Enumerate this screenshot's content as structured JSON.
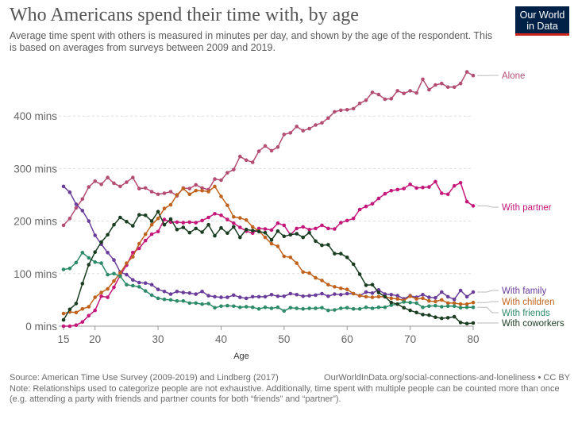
{
  "header": {
    "title": "Who Americans spend their time with, by age",
    "subtitle": "Average time spent with others is measured in minutes per day, and shown by the age of the respondent. This is based on averages from surveys between 2009 and 2019."
  },
  "logo": {
    "line1": "Our World",
    "line2": "in Data",
    "color": "#002147",
    "accent": "#ce261e"
  },
  "footer": {
    "source": "Source: American Time Use Survey (2009-2019) and Lindberg (2017)",
    "url": "OurWorldInData.org/social-connections-and-loneliness • CC BY",
    "note": "Note: Relationships used to categorize people are not exhaustive. Additionally, time spent with multiple people can be counted more than once (e.g. attending a party with friends and partner counts for both “friends” and “partner”)."
  },
  "chart_data": {
    "type": "line",
    "title": "Who Americans spend their time with, by age",
    "xlabel": "Age",
    "ylabel": "",
    "xlim": [
      15,
      80
    ],
    "ylim": [
      0,
      500
    ],
    "x_ticks": [
      15,
      20,
      30,
      40,
      50,
      60,
      70,
      80
    ],
    "x_tick_labels": [
      "15",
      "20",
      "30",
      "40",
      "50",
      "60",
      "70",
      "80"
    ],
    "y_ticks": [
      0,
      100,
      200,
      300,
      400
    ],
    "y_tick_labels": [
      "0 mins",
      "100 mins",
      "200 mins",
      "300 mins",
      "400 mins"
    ],
    "grid": true,
    "x": [
      15,
      16,
      17,
      18,
      19,
      20,
      21,
      22,
      23,
      24,
      25,
      26,
      27,
      28,
      29,
      30,
      31,
      32,
      33,
      34,
      35,
      36,
      37,
      38,
      39,
      40,
      41,
      42,
      43,
      44,
      45,
      46,
      47,
      48,
      49,
      50,
      51,
      52,
      53,
      54,
      55,
      56,
      57,
      58,
      59,
      60,
      61,
      62,
      63,
      64,
      65,
      66,
      67,
      68,
      69,
      70,
      71,
      72,
      73,
      74,
      75,
      76,
      77,
      78,
      79,
      80
    ],
    "series": [
      {
        "name": "Alone",
        "color": "#b34d74",
        "values": [
          192,
          205,
          225,
          242,
          265,
          276,
          270,
          283,
          272,
          266,
          274,
          283,
          262,
          263,
          256,
          251,
          253,
          256,
          248,
          263,
          262,
          269,
          263,
          260,
          280,
          278,
          292,
          298,
          323,
          316,
          312,
          333,
          343,
          334,
          341,
          365,
          368,
          380,
          372,
          376,
          383,
          387,
          396,
          408,
          411,
          412,
          414,
          424,
          430,
          445,
          441,
          432,
          433,
          448,
          443,
          448,
          444,
          470,
          450,
          459,
          462,
          455,
          455,
          462,
          484,
          477
        ]
      },
      {
        "name": "With partner",
        "color": "#c4177a",
        "values": [
          0,
          0,
          2,
          8,
          20,
          30,
          57,
          55,
          74,
          97,
          116,
          140,
          148,
          163,
          175,
          180,
          203,
          198,
          198,
          197,
          198,
          197,
          201,
          207,
          214,
          211,
          203,
          196,
          188,
          181,
          177,
          186,
          185,
          183,
          196,
          192,
          174,
          186,
          189,
          184,
          186,
          192,
          186,
          185,
          197,
          201,
          205,
          222,
          228,
          233,
          243,
          252,
          258,
          260,
          262,
          270,
          263,
          264,
          265,
          275,
          253,
          251,
          267,
          273,
          237,
          229
        ]
      },
      {
        "name": "With family",
        "color": "#6a3d9a",
        "values": [
          266,
          255,
          232,
          220,
          200,
          173,
          156,
          140,
          126,
          103,
          98,
          88,
          83,
          82,
          79,
          70,
          66,
          61,
          66,
          64,
          63,
          61,
          66,
          58,
          56,
          55,
          55,
          59,
          55,
          53,
          56,
          56,
          56,
          60,
          57,
          57,
          62,
          60,
          57,
          58,
          59,
          62,
          57,
          61,
          60,
          62,
          62,
          58,
          65,
          63,
          69,
          61,
          60,
          58,
          52,
          58,
          55,
          60,
          55,
          54,
          65,
          56,
          51,
          68,
          56,
          65
        ]
      },
      {
        "name": "With children",
        "color": "#c0631e",
        "values": [
          24,
          27,
          26,
          33,
          37,
          55,
          64,
          71,
          86,
          101,
          120,
          132,
          157,
          175,
          193,
          205,
          224,
          231,
          250,
          262,
          251,
          258,
          258,
          256,
          266,
          247,
          230,
          208,
          206,
          202,
          189,
          181,
          169,
          157,
          152,
          133,
          131,
          120,
          103,
          101,
          92,
          87,
          79,
          75,
          72,
          70,
          62,
          58,
          56,
          55,
          56,
          56,
          53,
          52,
          49,
          57,
          52,
          53,
          48,
          47,
          50,
          44,
          44,
          42,
          42,
          45
        ]
      },
      {
        "name": "With friends",
        "color": "#2e8b69",
        "values": [
          108,
          110,
          121,
          140,
          130,
          122,
          120,
          98,
          100,
          95,
          79,
          77,
          75,
          67,
          59,
          53,
          51,
          50,
          48,
          48,
          44,
          44,
          42,
          43,
          35,
          38,
          39,
          38,
          36,
          37,
          36,
          33,
          36,
          34,
          36,
          29,
          35,
          34,
          33,
          34,
          34,
          35,
          30,
          31,
          34,
          35,
          33,
          33,
          36,
          34,
          36,
          36,
          40,
          42,
          46,
          45,
          44,
          36,
          38,
          39,
          37,
          38,
          38,
          35,
          36,
          36
        ]
      },
      {
        "name": "With coworkers",
        "color": "#1a3d22",
        "values": [
          12,
          32,
          43,
          81,
          117,
          141,
          160,
          174,
          193,
          207,
          199,
          191,
          212,
          211,
          200,
          218,
          193,
          204,
          184,
          188,
          178,
          186,
          179,
          193,
          172,
          187,
          177,
          189,
          169,
          184,
          182,
          180,
          178,
          164,
          181,
          171,
          174,
          176,
          169,
          178,
          162,
          154,
          155,
          138,
          138,
          131,
          118,
          99,
          78,
          79,
          64,
          56,
          45,
          42,
          35,
          30,
          26,
          22,
          21,
          17,
          15,
          16,
          18,
          7,
          5,
          6
        ]
      }
    ]
  }
}
